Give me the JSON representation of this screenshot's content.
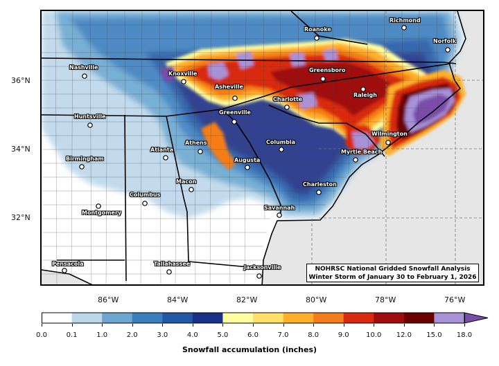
{
  "map": {
    "title_line1": "NOHRSC National Gridded Snowfall Analysis",
    "title_line2": "Winter Storm of January 30 to February 1, 2026",
    "lon_ticks": [
      {
        "id": "86",
        "label": "86°W"
      },
      {
        "id": "84",
        "label": "84°W"
      },
      {
        "id": "82",
        "label": "82°W"
      },
      {
        "id": "80",
        "label": "80°W"
      },
      {
        "id": "78",
        "label": "78°W"
      },
      {
        "id": "76",
        "label": "76°W"
      }
    ],
    "lat_ticks": [
      {
        "id": "36",
        "label": "36°N"
      },
      {
        "id": "34",
        "label": "34°N"
      },
      {
        "id": "32",
        "label": "32°N"
      }
    ],
    "cities": [
      {
        "id": "richmond",
        "name": "Richmond"
      },
      {
        "id": "roanoke",
        "name": "Roanoke"
      },
      {
        "id": "norfolk",
        "name": "Norfolk"
      },
      {
        "id": "nashville",
        "name": "Nashville"
      },
      {
        "id": "knoxville",
        "name": "Knoxville"
      },
      {
        "id": "greensboro",
        "name": "Greensboro"
      },
      {
        "id": "asheville",
        "name": "Asheville"
      },
      {
        "id": "raleigh",
        "name": "Raleigh"
      },
      {
        "id": "charlotte",
        "name": "Charlotte"
      },
      {
        "id": "greenville",
        "name": "Greenville"
      },
      {
        "id": "huntsville",
        "name": "Huntsville"
      },
      {
        "id": "wilmington",
        "name": "Wilmington"
      },
      {
        "id": "athens",
        "name": "Athens"
      },
      {
        "id": "columbia",
        "name": "Columbia"
      },
      {
        "id": "myrtle",
        "name": "Myrtle Beach"
      },
      {
        "id": "atlanta",
        "name": "Atlanta"
      },
      {
        "id": "birmingham",
        "name": "Birmingham"
      },
      {
        "id": "augusta",
        "name": "Augusta"
      },
      {
        "id": "macon",
        "name": "Macon"
      },
      {
        "id": "charleston",
        "name": "Charleston"
      },
      {
        "id": "columbus",
        "name": "Columbus"
      },
      {
        "id": "montgomery",
        "name": "Montgomery"
      },
      {
        "id": "savannah",
        "name": "Savannah"
      },
      {
        "id": "pensacola",
        "name": "Pensacola"
      },
      {
        "id": "tallahassee",
        "name": "Tallahassee"
      },
      {
        "id": "jacksonville",
        "name": "Jacksonville"
      }
    ],
    "colors": {
      "ocean": "#e6e6e6",
      "land": "#ffffff"
    }
  },
  "colorbar": {
    "label": "Snowfall accumulation (inches)",
    "tick_labels": [
      "0.0",
      "0.1",
      "1.0",
      "2.0",
      "3.0",
      "4.0",
      "5.0",
      "6.0",
      "7.0",
      "8.0",
      "9.0",
      "10.0",
      "12.0",
      "15.0",
      "18.0"
    ],
    "colors": [
      "#ffffff",
      "#bcd7ea",
      "#6ba7d0",
      "#3b7fbf",
      "#2358a6",
      "#1a2f86",
      "#fffe9e",
      "#ffe066",
      "#ffb02a",
      "#f57d19",
      "#d9290e",
      "#a00c0e",
      "#6b0000",
      "#a792d8",
      "#7a4ea8"
    ]
  }
}
